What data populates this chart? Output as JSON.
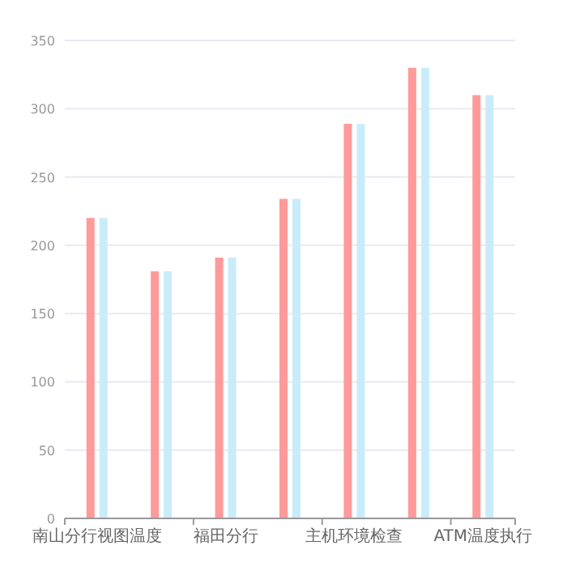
{
  "chart_data": {
    "type": "bar",
    "categories": [
      "南山分行视图温度",
      null,
      "福田分行",
      null,
      "主机环境检查",
      null,
      "ATM温度执行"
    ],
    "series": [
      {
        "color": "#fe9a9a",
        "values": [
          220,
          181,
          191,
          234,
          289,
          330,
          310
        ]
      },
      {
        "color": "#c9ecfb",
        "values": [
          220,
          181,
          191,
          234,
          289,
          330,
          310
        ]
      }
    ],
    "ylim": [
      0,
      350
    ],
    "yticks": [
      0,
      50,
      100,
      150,
      200,
      250,
      300,
      350
    ],
    "grid": "y"
  }
}
